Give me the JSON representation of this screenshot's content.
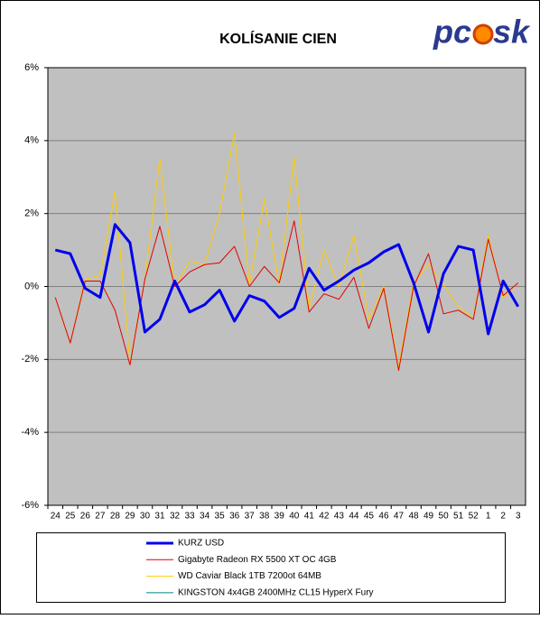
{
  "chart_data": {
    "type": "line",
    "title": "KOLÍSANIE CIEN",
    "logo": {
      "left": "pc",
      "right": "sk"
    },
    "categories": [
      "24",
      "25",
      "26",
      "27",
      "28",
      "29",
      "30",
      "31",
      "32",
      "33",
      "34",
      "35",
      "36",
      "37",
      "38",
      "39",
      "40",
      "41",
      "42",
      "43",
      "44",
      "45",
      "46",
      "47",
      "48",
      "49",
      "50",
      "51",
      "52",
      "1",
      "2",
      "3"
    ],
    "series": [
      {
        "name": "KURZ USD",
        "color": "#0000ee",
        "width": 3,
        "values": [
          1.0,
          0.9,
          -0.05,
          -0.3,
          1.7,
          1.2,
          -1.25,
          -0.9,
          0.15,
          -0.7,
          -0.5,
          -0.1,
          -0.95,
          -0.25,
          -0.4,
          -0.85,
          -0.6,
          0.5,
          -0.1,
          0.15,
          0.45,
          0.65,
          0.95,
          1.15,
          0.1,
          -1.25,
          0.35,
          1.1,
          1.0,
          -1.3,
          0.15,
          -0.55
        ]
      },
      {
        "name": "Gigabyte Radeon RX 5500 XT OC 4GB",
        "color": "#e00000",
        "width": 1,
        "values": [
          -0.3,
          -1.55,
          0.15,
          0.15,
          -0.65,
          -2.15,
          0.2,
          1.65,
          0,
          0.4,
          0.6,
          0.65,
          1.1,
          0,
          0.55,
          0.1,
          1.8,
          -0.7,
          -0.2,
          -0.35,
          0.25,
          -1.15,
          -0.05,
          -2.3,
          0,
          0.9,
          -0.75,
          -0.65,
          -0.9,
          1.3,
          -0.25,
          0.1
        ]
      },
      {
        "name": "WD Caviar Black 1TB 7200ot 64MB",
        "color": "#ffcc00",
        "width": 1,
        "values": [
          -0.3,
          -1.55,
          0.2,
          0.3,
          2.6,
          -2.1,
          0.2,
          3.5,
          0,
          0.7,
          0.6,
          2.0,
          4.2,
          0.05,
          2.4,
          0.05,
          3.55,
          -0.6,
          1.0,
          0,
          1.4,
          -0.9,
          0,
          -2.2,
          0.1,
          0.6,
          0.05,
          -0.55,
          -0.85,
          1.4,
          -0.3,
          0.1
        ]
      },
      {
        "name": "KINGSTON 4x4GB 2400MHz CL15 HyperX Fury",
        "color": "#008080",
        "width": 1,
        "values": [
          null,
          null,
          null,
          null,
          null,
          null,
          null,
          null,
          null,
          null,
          null,
          null,
          null,
          null,
          null,
          null,
          null,
          null,
          null,
          null,
          null,
          null,
          null,
          null,
          null,
          null,
          null,
          null,
          null,
          null,
          null,
          null
        ]
      }
    ],
    "ylim": [
      -6,
      6
    ],
    "yticks": [
      {
        "value": 6,
        "label": "6%"
      },
      {
        "value": 4,
        "label": "4%"
      },
      {
        "value": 2,
        "label": "2%"
      },
      {
        "value": 0,
        "label": "0%"
      },
      {
        "value": -2,
        "label": "-2%"
      },
      {
        "value": -4,
        "label": "-4%"
      },
      {
        "value": -6,
        "label": "-6%"
      }
    ],
    "grid": true
  }
}
